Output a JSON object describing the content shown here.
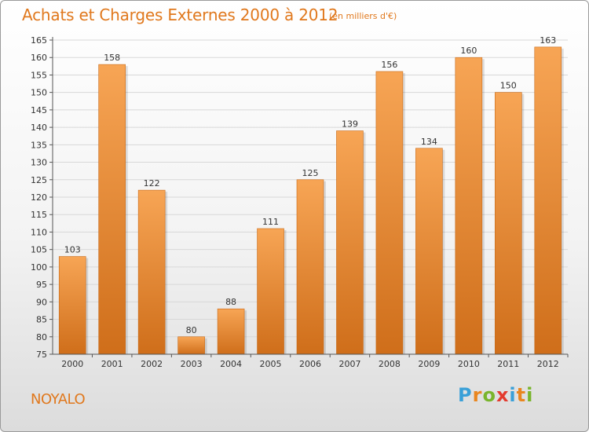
{
  "header": {
    "title": "Achats et Charges Externes 2000 à 2012",
    "subtitle": "(en milliers d'€)"
  },
  "footer": {
    "commune": "NOYALO",
    "logo": {
      "letters": [
        "P",
        "r",
        "o",
        "x",
        "i",
        "t",
        "i"
      ],
      "colors": [
        "#3aa0d8",
        "#e9861f",
        "#79b52c",
        "#e33b2e",
        "#3aa0d8",
        "#e9861f",
        "#79b52c"
      ]
    }
  },
  "chart_data": {
    "type": "bar",
    "title": "Achats et Charges Externes 2000 à 2012",
    "subtitle": "(en milliers d'€)",
    "categories": [
      "2000",
      "2001",
      "2002",
      "2003",
      "2004",
      "2005",
      "2006",
      "2007",
      "2008",
      "2009",
      "2010",
      "2011",
      "2012"
    ],
    "values": [
      103,
      158,
      122,
      80,
      88,
      111,
      125,
      139,
      156,
      134,
      160,
      150,
      163
    ],
    "ylim": [
      75,
      165
    ],
    "yticks": [
      75,
      80,
      85,
      90,
      95,
      100,
      105,
      110,
      115,
      120,
      125,
      130,
      135,
      140,
      145,
      150,
      155,
      160,
      165
    ],
    "grid": true,
    "legend": "none",
    "colors": {
      "bar_light": "#f7a555",
      "bar_dark": "#cf6e1a",
      "grid": "#d8d8d8",
      "axis": "#555555"
    }
  }
}
